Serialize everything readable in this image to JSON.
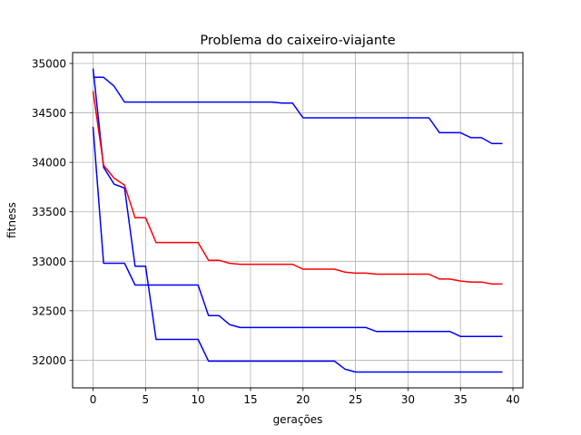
{
  "chart_data": {
    "type": "line",
    "title": "Problema do caixeiro-viajante",
    "xlabel": "gerações",
    "ylabel": "fitness",
    "xlim": [
      -1.95,
      40.95
    ],
    "ylim": [
      31720,
      35110
    ],
    "xticks": [
      0,
      5,
      10,
      15,
      20,
      25,
      30,
      35,
      40
    ],
    "yticks": [
      32000,
      32500,
      33000,
      33500,
      34000,
      34500,
      35000
    ],
    "grid": true,
    "legend": "none",
    "series": [
      {
        "color": "#0000ff",
        "x": [
          0,
          1,
          2,
          3,
          4,
          5,
          6,
          7,
          8,
          9,
          10,
          11,
          12,
          13,
          14,
          15,
          16,
          17,
          18,
          19,
          20,
          21,
          22,
          23,
          24,
          25,
          26,
          27,
          28,
          29,
          30,
          31,
          32,
          33,
          34,
          35,
          36,
          37,
          38,
          39
        ],
        "y": [
          34950,
          33950,
          33780,
          33740,
          32950,
          32950,
          32210,
          32210,
          32210,
          32210,
          32210,
          31990,
          31990,
          31990,
          31990,
          31990,
          31990,
          31990,
          31990,
          31990,
          31990,
          31990,
          31990,
          31990,
          31910,
          31880,
          31880,
          31880,
          31880,
          31880,
          31880,
          31880,
          31880,
          31880,
          31880,
          31880,
          31880,
          31880,
          31880,
          31880
        ]
      },
      {
        "color": "#0000ff",
        "x": [
          0,
          1,
          2,
          3,
          4,
          5,
          6,
          7,
          8,
          9,
          10,
          11,
          12,
          13,
          14,
          15,
          16,
          17,
          18,
          19,
          20,
          21,
          22,
          23,
          24,
          25,
          26,
          27,
          28,
          29,
          30,
          31,
          32,
          33,
          34,
          35,
          36,
          37,
          38,
          39
        ],
        "y": [
          34860,
          34860,
          34770,
          34610,
          34610,
          34610,
          34610,
          34610,
          34610,
          34610,
          34610,
          34610,
          34610,
          34610,
          34610,
          34610,
          34610,
          34610,
          34600,
          34600,
          34450,
          34450,
          34450,
          34450,
          34450,
          34450,
          34450,
          34450,
          34450,
          34450,
          34450,
          34450,
          34450,
          34300,
          34300,
          34300,
          34250,
          34250,
          34190,
          34190
        ]
      },
      {
        "color": "#0000ff",
        "x": [
          0,
          1,
          2,
          3,
          4,
          5,
          6,
          7,
          8,
          9,
          10,
          11,
          12,
          13,
          14,
          15,
          16,
          17,
          18,
          19,
          20,
          21,
          22,
          23,
          24,
          25,
          26,
          27,
          28,
          29,
          30,
          31,
          32,
          33,
          34,
          35,
          36,
          37,
          38,
          39
        ],
        "y": [
          34360,
          32980,
          32980,
          32980,
          32760,
          32760,
          32760,
          32760,
          32760,
          32760,
          32760,
          32450,
          32450,
          32360,
          32330,
          32330,
          32330,
          32330,
          32330,
          32330,
          32330,
          32330,
          32330,
          32330,
          32330,
          32330,
          32330,
          32290,
          32290,
          32290,
          32290,
          32290,
          32290,
          32290,
          32290,
          32240,
          32240,
          32240,
          32240,
          32240
        ]
      },
      {
        "color": "#ff0000",
        "x": [
          0,
          1,
          2,
          3,
          4,
          5,
          6,
          7,
          8,
          9,
          10,
          11,
          12,
          13,
          14,
          15,
          16,
          17,
          18,
          19,
          20,
          21,
          22,
          23,
          24,
          25,
          26,
          27,
          28,
          29,
          30,
          31,
          32,
          33,
          34,
          35,
          36,
          37,
          38,
          39
        ],
        "y": [
          34720,
          33970,
          33840,
          33770,
          33440,
          33440,
          33190,
          33190,
          33190,
          33190,
          33190,
          33010,
          33010,
          32980,
          32970,
          32970,
          32970,
          32970,
          32970,
          32970,
          32920,
          32920,
          32920,
          32920,
          32890,
          32880,
          32880,
          32870,
          32870,
          32870,
          32870,
          32870,
          32870,
          32820,
          32820,
          32800,
          32790,
          32790,
          32770,
          32770
        ]
      }
    ]
  }
}
